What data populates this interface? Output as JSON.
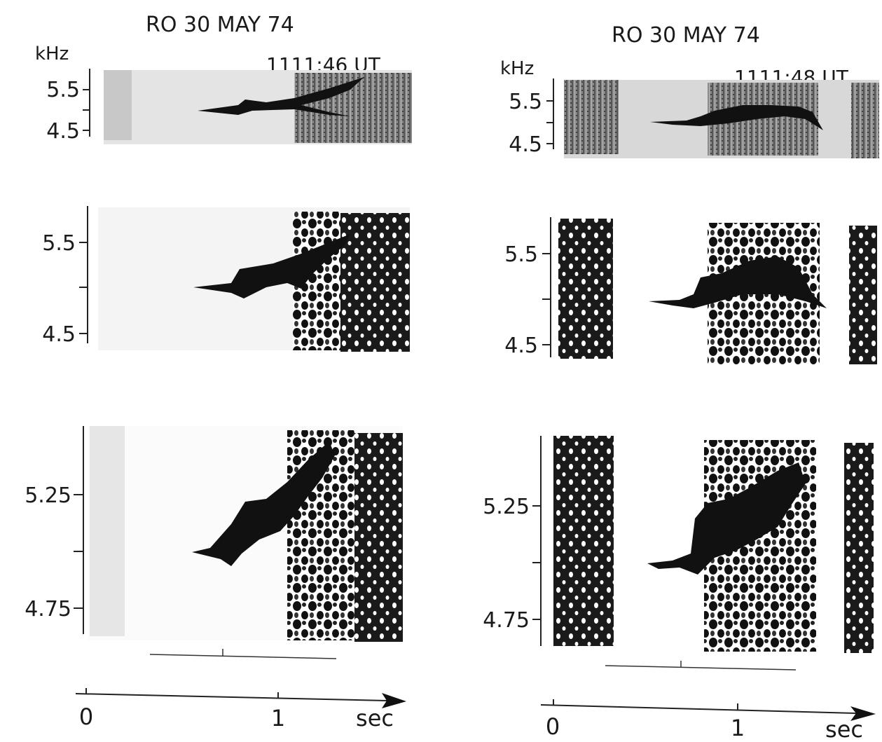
{
  "panels": [
    {
      "station": "RO",
      "date": "30 MAY 74",
      "time": "1111:46 UT",
      "frequency_unit": "kHz",
      "strips": [
        {
          "tick_labels": [
            "5.5",
            "4.5"
          ]
        },
        {
          "tick_labels": [
            "5.5",
            "4.5"
          ]
        },
        {
          "tick_labels": [
            "5.25",
            "4.75"
          ]
        }
      ],
      "time_axis": {
        "ticks": [
          "0",
          "1"
        ],
        "unit": "sec"
      }
    },
    {
      "station": "RO",
      "date": "30 MAY 74",
      "time": "1111:48 UT",
      "frequency_unit": "kHz",
      "strips": [
        {
          "tick_labels": [
            "5.5",
            "4.5"
          ]
        },
        {
          "tick_labels": [
            "5.5",
            "4.5"
          ]
        },
        {
          "tick_labels": [
            "5.25",
            "4.75"
          ]
        }
      ],
      "time_axis": {
        "ticks": [
          "0",
          "1"
        ],
        "unit": "sec"
      }
    }
  ]
}
